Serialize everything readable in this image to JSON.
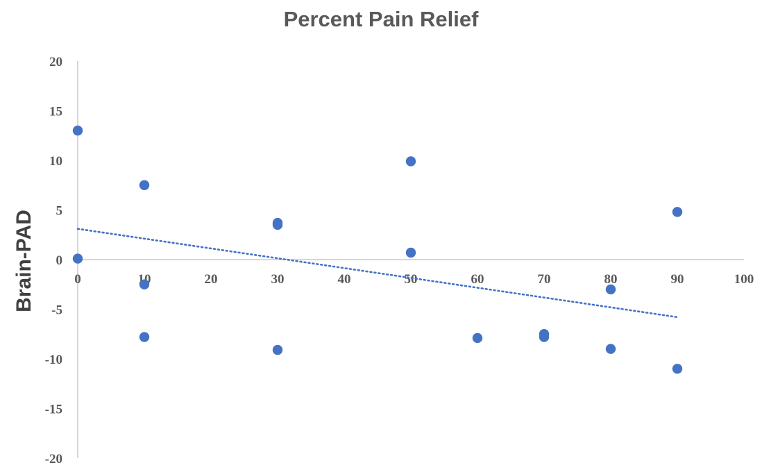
{
  "chart_data": {
    "type": "scatter",
    "title": "Percent Pain Relief",
    "xlabel": "",
    "ylabel": "Brain-PAD",
    "xlim": [
      0,
      100
    ],
    "ylim": [
      -20,
      20
    ],
    "x_ticks": [
      0,
      10,
      20,
      30,
      40,
      50,
      60,
      70,
      80,
      90,
      100
    ],
    "y_ticks": [
      20,
      15,
      10,
      5,
      0,
      -5,
      -10,
      -15,
      -20
    ],
    "grid": false,
    "legend": "none",
    "marker_color": "#4472C4",
    "trendline_color": "#4472C4",
    "series": [
      {
        "points": [
          {
            "x": 0,
            "y": 13.0
          },
          {
            "x": 0,
            "y": 0.1
          },
          {
            "x": 10,
            "y": 7.5
          },
          {
            "x": 10,
            "y": -2.5
          },
          {
            "x": 10,
            "y": -7.8
          },
          {
            "x": 30,
            "y": 3.7
          },
          {
            "x": 30,
            "y": 3.5
          },
          {
            "x": 30,
            "y": -9.1
          },
          {
            "x": 50,
            "y": 9.9
          },
          {
            "x": 50,
            "y": 0.7
          },
          {
            "x": 60,
            "y": -7.9
          },
          {
            "x": 70,
            "y": -7.5
          },
          {
            "x": 70,
            "y": -7.8
          },
          {
            "x": 80,
            "y": -3.0
          },
          {
            "x": 80,
            "y": -9.0
          },
          {
            "x": 90,
            "y": 4.8
          },
          {
            "x": 90,
            "y": -11.0
          }
        ]
      }
    ],
    "trendline": {
      "type": "linear",
      "style": "dotted",
      "from": {
        "x": 0,
        "y": 3.1
      },
      "to": {
        "x": 90,
        "y": -5.8
      }
    }
  }
}
